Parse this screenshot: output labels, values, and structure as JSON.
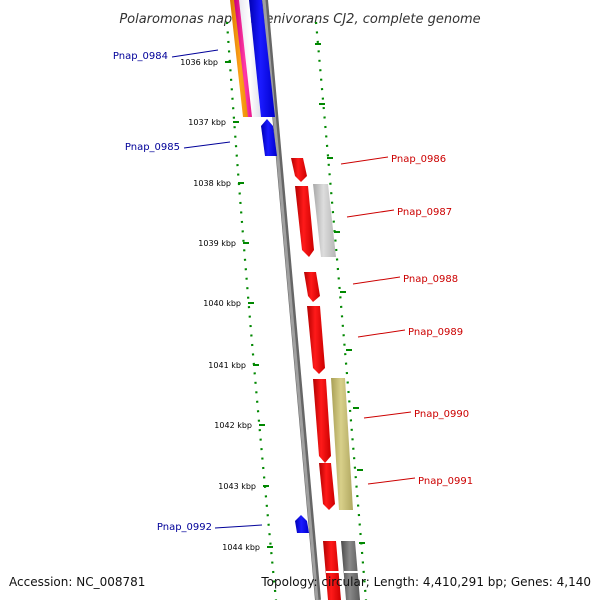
{
  "title": "Polaromonas naphthalenivorans CJ2, complete genome",
  "accession": "Accession: NC_008781",
  "topology": "Topology: circular; Length: 4,410,291 bp; Genes: 4,140",
  "colors": {
    "forward_cds": "#ff0000",
    "reverse_cds": "#0000ff",
    "label_forward": "#cc0000",
    "label_reverse": "#000099",
    "tick": "#008800",
    "backbone": "#888888"
  },
  "ticks": [
    "1036 kbp",
    "1037 kbp",
    "1038 kbp",
    "1039 kbp",
    "1040 kbp",
    "1041 kbp",
    "1042 kbp",
    "1043 kbp",
    "1044 kbp"
  ],
  "gene_labels": [
    {
      "name": "Pnap_0984",
      "strand": "reverse"
    },
    {
      "name": "Pnap_0985",
      "strand": "reverse"
    },
    {
      "name": "Pnap_0986",
      "strand": "forward"
    },
    {
      "name": "Pnap_0987",
      "strand": "forward"
    },
    {
      "name": "Pnap_0988",
      "strand": "forward"
    },
    {
      "name": "Pnap_0989",
      "strand": "forward"
    },
    {
      "name": "Pnap_0990",
      "strand": "forward"
    },
    {
      "name": "Pnap_0991",
      "strand": "forward"
    },
    {
      "name": "Pnap_0992",
      "strand": "reverse"
    }
  ]
}
